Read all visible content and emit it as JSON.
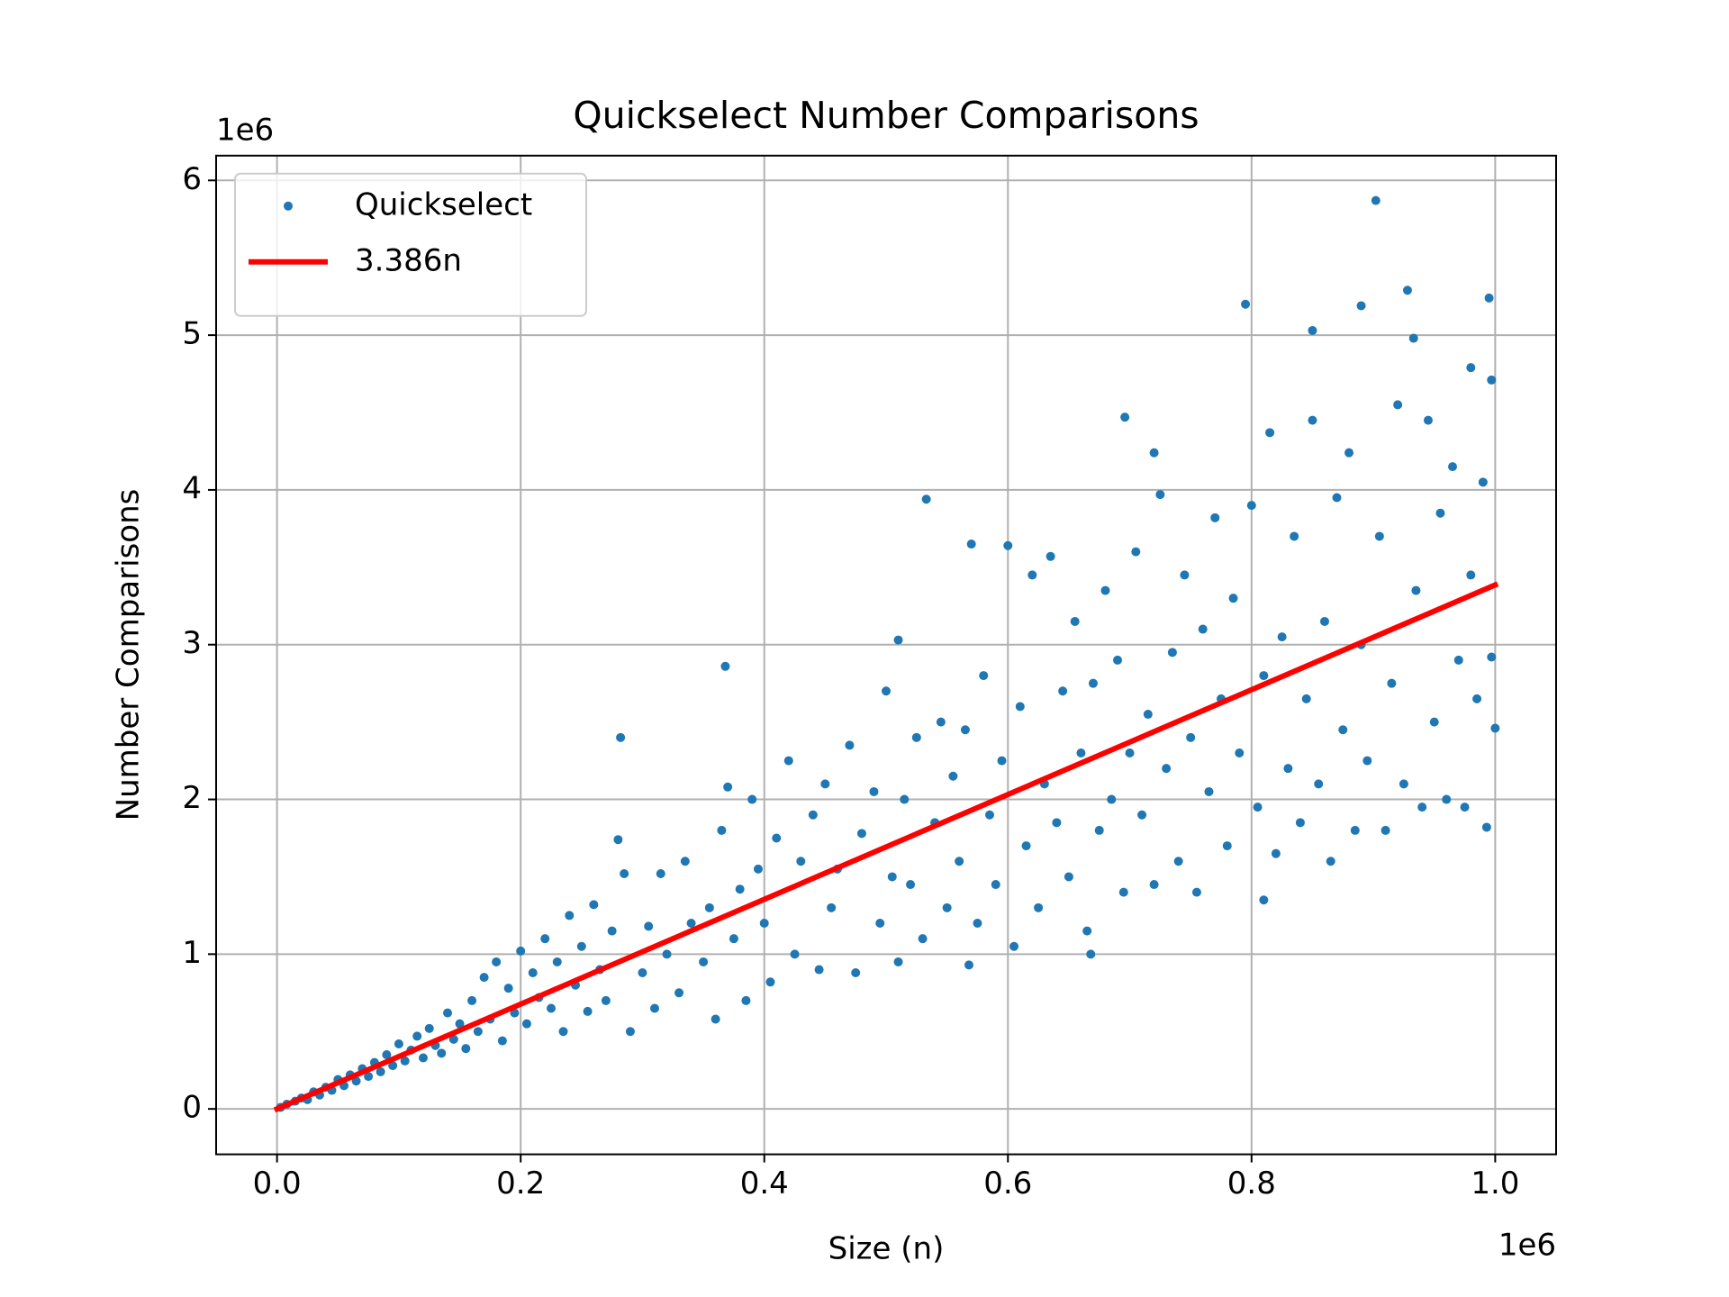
{
  "chart_data": {
    "type": "scatter",
    "title": "Quickselect Number Comparisons",
    "x_label": "Size (n)",
    "y_label": "Number Comparisons",
    "x_offset_label": "1e6",
    "y_offset_label": "1e6",
    "xlim": [
      -0.05,
      1.05
    ],
    "ylim": [
      -0.2935,
      6.16
    ],
    "xticks": [
      {
        "value": 0,
        "label": "0.0"
      },
      0.2,
      0.4,
      0.6,
      0.8,
      {
        "value": 1,
        "label": "1.0"
      }
    ],
    "yticks": [
      0,
      1,
      2,
      3,
      4,
      5,
      6
    ],
    "grid": true,
    "legend": "upper left",
    "series": [
      {
        "name": "Quickselect",
        "kind": "scatter",
        "color": "#1f77b4",
        "x": [
          0.003,
          0.008,
          0.015,
          0.02,
          0.025,
          0.03,
          0.035,
          0.04,
          0.045,
          0.05,
          0.055,
          0.06,
          0.065,
          0.07,
          0.075,
          0.08,
          0.085,
          0.09,
          0.095,
          0.1,
          0.105,
          0.11,
          0.115,
          0.12,
          0.125,
          0.13,
          0.135,
          0.14,
          0.145,
          0.15,
          0.155,
          0.16,
          0.165,
          0.17,
          0.175,
          0.18,
          0.185,
          0.19,
          0.195,
          0.2,
          0.205,
          0.21,
          0.215,
          0.22,
          0.225,
          0.23,
          0.235,
          0.24,
          0.245,
          0.25,
          0.255,
          0.26,
          0.265,
          0.27,
          0.275,
          0.285,
          0.3,
          0.305,
          0.31,
          0.315,
          0.32,
          0.33,
          0.335,
          0.34,
          0.35,
          0.355,
          0.36,
          0.365,
          0.37,
          0.375,
          0.38,
          0.385,
          0.39,
          0.395,
          0.4,
          0.405,
          0.41,
          0.42,
          0.425,
          0.43,
          0.44,
          0.445,
          0.45,
          0.455,
          0.46,
          0.47,
          0.475,
          0.48,
          0.49,
          0.495,
          0.5,
          0.505,
          0.51,
          0.515,
          0.52,
          0.525,
          0.53,
          0.54,
          0.545,
          0.55,
          0.555,
          0.56,
          0.565,
          0.575,
          0.58,
          0.585,
          0.59,
          0.595,
          0.605,
          0.61,
          0.615,
          0.62,
          0.625,
          0.63,
          0.635,
          0.64,
          0.645,
          0.65,
          0.655,
          0.66,
          0.665,
          0.67,
          0.675,
          0.68,
          0.685,
          0.69,
          0.695,
          0.7,
          0.705,
          0.71,
          0.715,
          0.72,
          0.725,
          0.73,
          0.735,
          0.74,
          0.745,
          0.75,
          0.755,
          0.76,
          0.765,
          0.77,
          0.775,
          0.78,
          0.785,
          0.79,
          0.8,
          0.805,
          0.81,
          0.815,
          0.82,
          0.825,
          0.83,
          0.835,
          0.84,
          0.845,
          0.85,
          0.855,
          0.86,
          0.865,
          0.87,
          0.875,
          0.88,
          0.885,
          0.89,
          0.895,
          0.905,
          0.91,
          0.915,
          0.92,
          0.925,
          0.935,
          0.94,
          0.945,
          0.95,
          0.955,
          0.96,
          0.965,
          0.97,
          0.975,
          0.98,
          0.985,
          0.99,
          0.993,
          0.997,
          1.0,
          0.902,
          0.795,
          0.89,
          0.928,
          0.995,
          0.85,
          0.933,
          0.98,
          0.997,
          0.533,
          0.368,
          0.282,
          0.696,
          0.72,
          0.57,
          0.6,
          0.51,
          0.568,
          0.668,
          0.81,
          0.28,
          0.29
        ],
        "values": [
          0.01,
          0.03,
          0.05,
          0.07,
          0.06,
          0.11,
          0.09,
          0.14,
          0.12,
          0.19,
          0.15,
          0.22,
          0.18,
          0.26,
          0.21,
          0.3,
          0.24,
          0.35,
          0.28,
          0.42,
          0.31,
          0.38,
          0.47,
          0.33,
          0.52,
          0.41,
          0.36,
          0.62,
          0.45,
          0.55,
          0.39,
          0.7,
          0.5,
          0.85,
          0.58,
          0.95,
          0.44,
          0.78,
          0.62,
          1.02,
          0.55,
          0.88,
          0.72,
          1.1,
          0.65,
          0.95,
          0.5,
          1.25,
          0.8,
          1.05,
          0.63,
          1.32,
          0.9,
          0.7,
          1.15,
          1.52,
          0.88,
          1.18,
          0.65,
          1.52,
          1.0,
          0.75,
          1.6,
          1.2,
          0.95,
          1.3,
          0.58,
          1.8,
          2.08,
          1.1,
          1.42,
          0.7,
          2.0,
          1.55,
          1.2,
          0.82,
          1.75,
          2.25,
          1.0,
          1.6,
          1.9,
          0.9,
          2.1,
          1.3,
          1.55,
          2.35,
          0.88,
          1.78,
          2.05,
          1.2,
          2.7,
          1.5,
          0.95,
          2.0,
          1.45,
          2.4,
          1.1,
          1.85,
          2.5,
          1.3,
          2.15,
          1.6,
          2.45,
          1.2,
          2.8,
          1.9,
          1.45,
          2.25,
          1.05,
          2.6,
          1.7,
          3.45,
          1.3,
          2.1,
          3.57,
          1.85,
          2.7,
          1.5,
          3.15,
          2.3,
          1.15,
          2.75,
          1.8,
          3.35,
          2.0,
          2.9,
          1.4,
          2.3,
          3.6,
          1.9,
          2.55,
          1.45,
          3.97,
          2.2,
          2.95,
          1.6,
          3.45,
          2.4,
          1.4,
          3.1,
          2.05,
          3.82,
          2.65,
          1.7,
          3.3,
          2.3,
          3.9,
          1.95,
          2.8,
          4.37,
          1.65,
          3.05,
          2.2,
          3.7,
          1.85,
          2.65,
          4.45,
          2.1,
          3.15,
          1.6,
          3.95,
          2.45,
          4.24,
          1.8,
          3.0,
          2.25,
          3.7,
          1.8,
          2.75,
          4.55,
          2.1,
          3.35,
          1.95,
          4.45,
          2.5,
          3.85,
          2.0,
          4.15,
          2.9,
          1.95,
          3.45,
          2.65,
          4.05,
          1.82,
          2.92,
          2.46,
          5.87,
          5.2,
          5.19,
          5.29,
          5.24,
          5.03,
          4.98,
          4.79,
          4.71,
          3.94,
          2.86,
          2.4,
          4.47,
          4.24,
          3.65,
          3.64,
          3.03,
          0.93,
          1.0,
          1.35,
          1.74,
          0.5
        ]
      },
      {
        "name": "3.386n",
        "kind": "line",
        "color": "#ff0000",
        "x": [
          0,
          1
        ],
        "values": [
          0,
          3.386
        ]
      }
    ]
  }
}
